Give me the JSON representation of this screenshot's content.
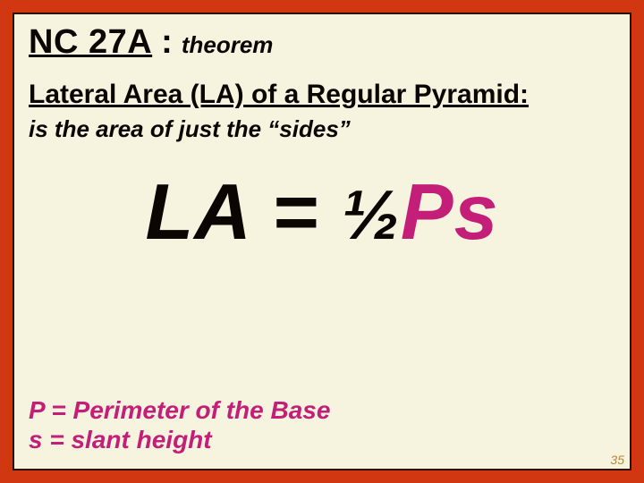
{
  "colors": {
    "frame": "#d13812",
    "slide_bg": "#f6f3de",
    "text": "#0c0603",
    "accent": "#c41f78",
    "slidenum": "#b48a3a"
  },
  "title": {
    "code": "NC 27A",
    "colon": ":",
    "keyword": "theorem"
  },
  "subheading": "Lateral Area (LA) of a Regular Pyramid:",
  "description": "is the area of just the “sides”",
  "formula": {
    "lhs": "LA",
    "eq": " = ",
    "half": "½",
    "ps": "Ps"
  },
  "legend": {
    "line1": "P = Perimeter of the Base",
    "line2": "s = slant height"
  },
  "slide_number": "35"
}
